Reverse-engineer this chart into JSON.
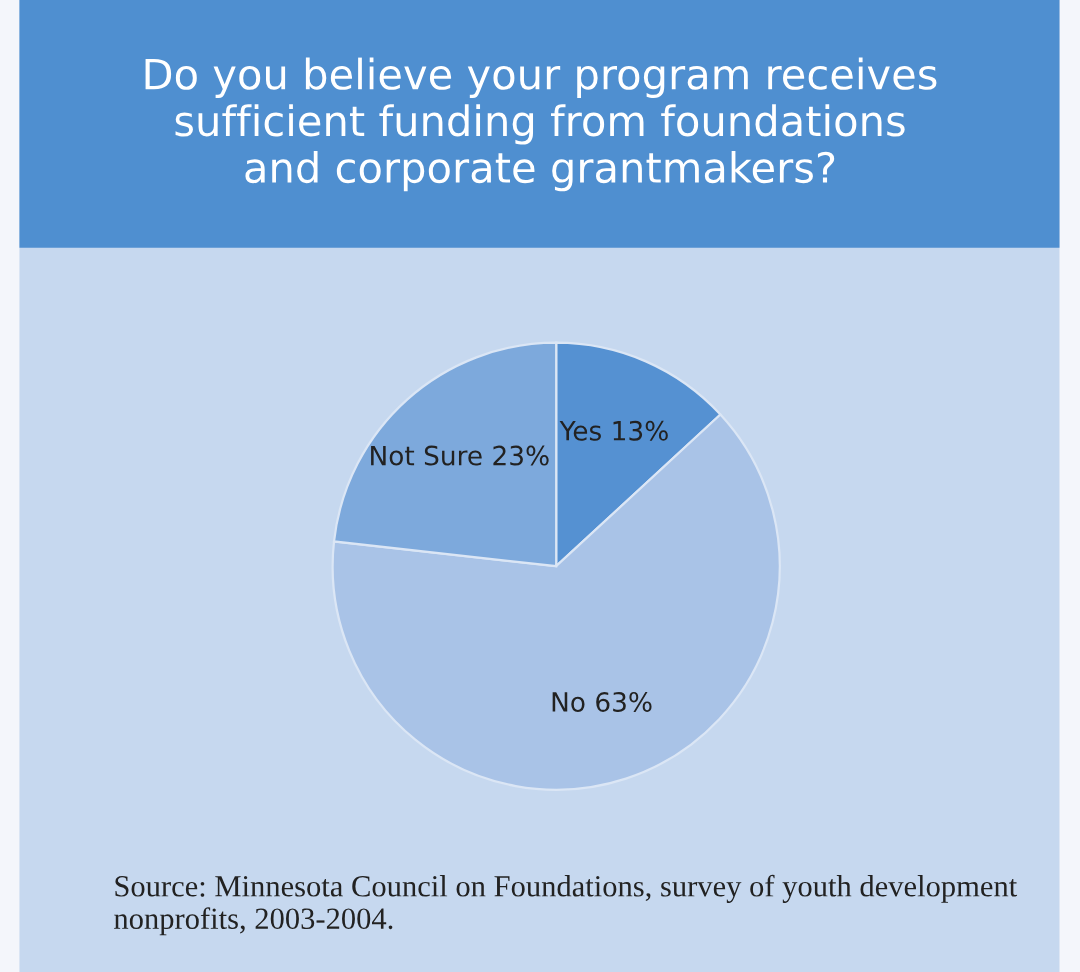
{
  "chart_data": {
    "type": "pie",
    "title": "Do you believe your program receives\nsufficient funding from foundations\nand corporate grantmakers?",
    "categories": [
      "Yes",
      "No",
      "Not Sure"
    ],
    "values": [
      13,
      63,
      23
    ],
    "value_labels": [
      "13%",
      "63%",
      "23%"
    ],
    "colors": [
      "#5591d2",
      "#a9c3e7",
      "#7da9dc"
    ],
    "annotations": [
      "Source: Minnesota Council on Foundations, survey of youth development nonprofits, 2003-2004."
    ]
  }
}
